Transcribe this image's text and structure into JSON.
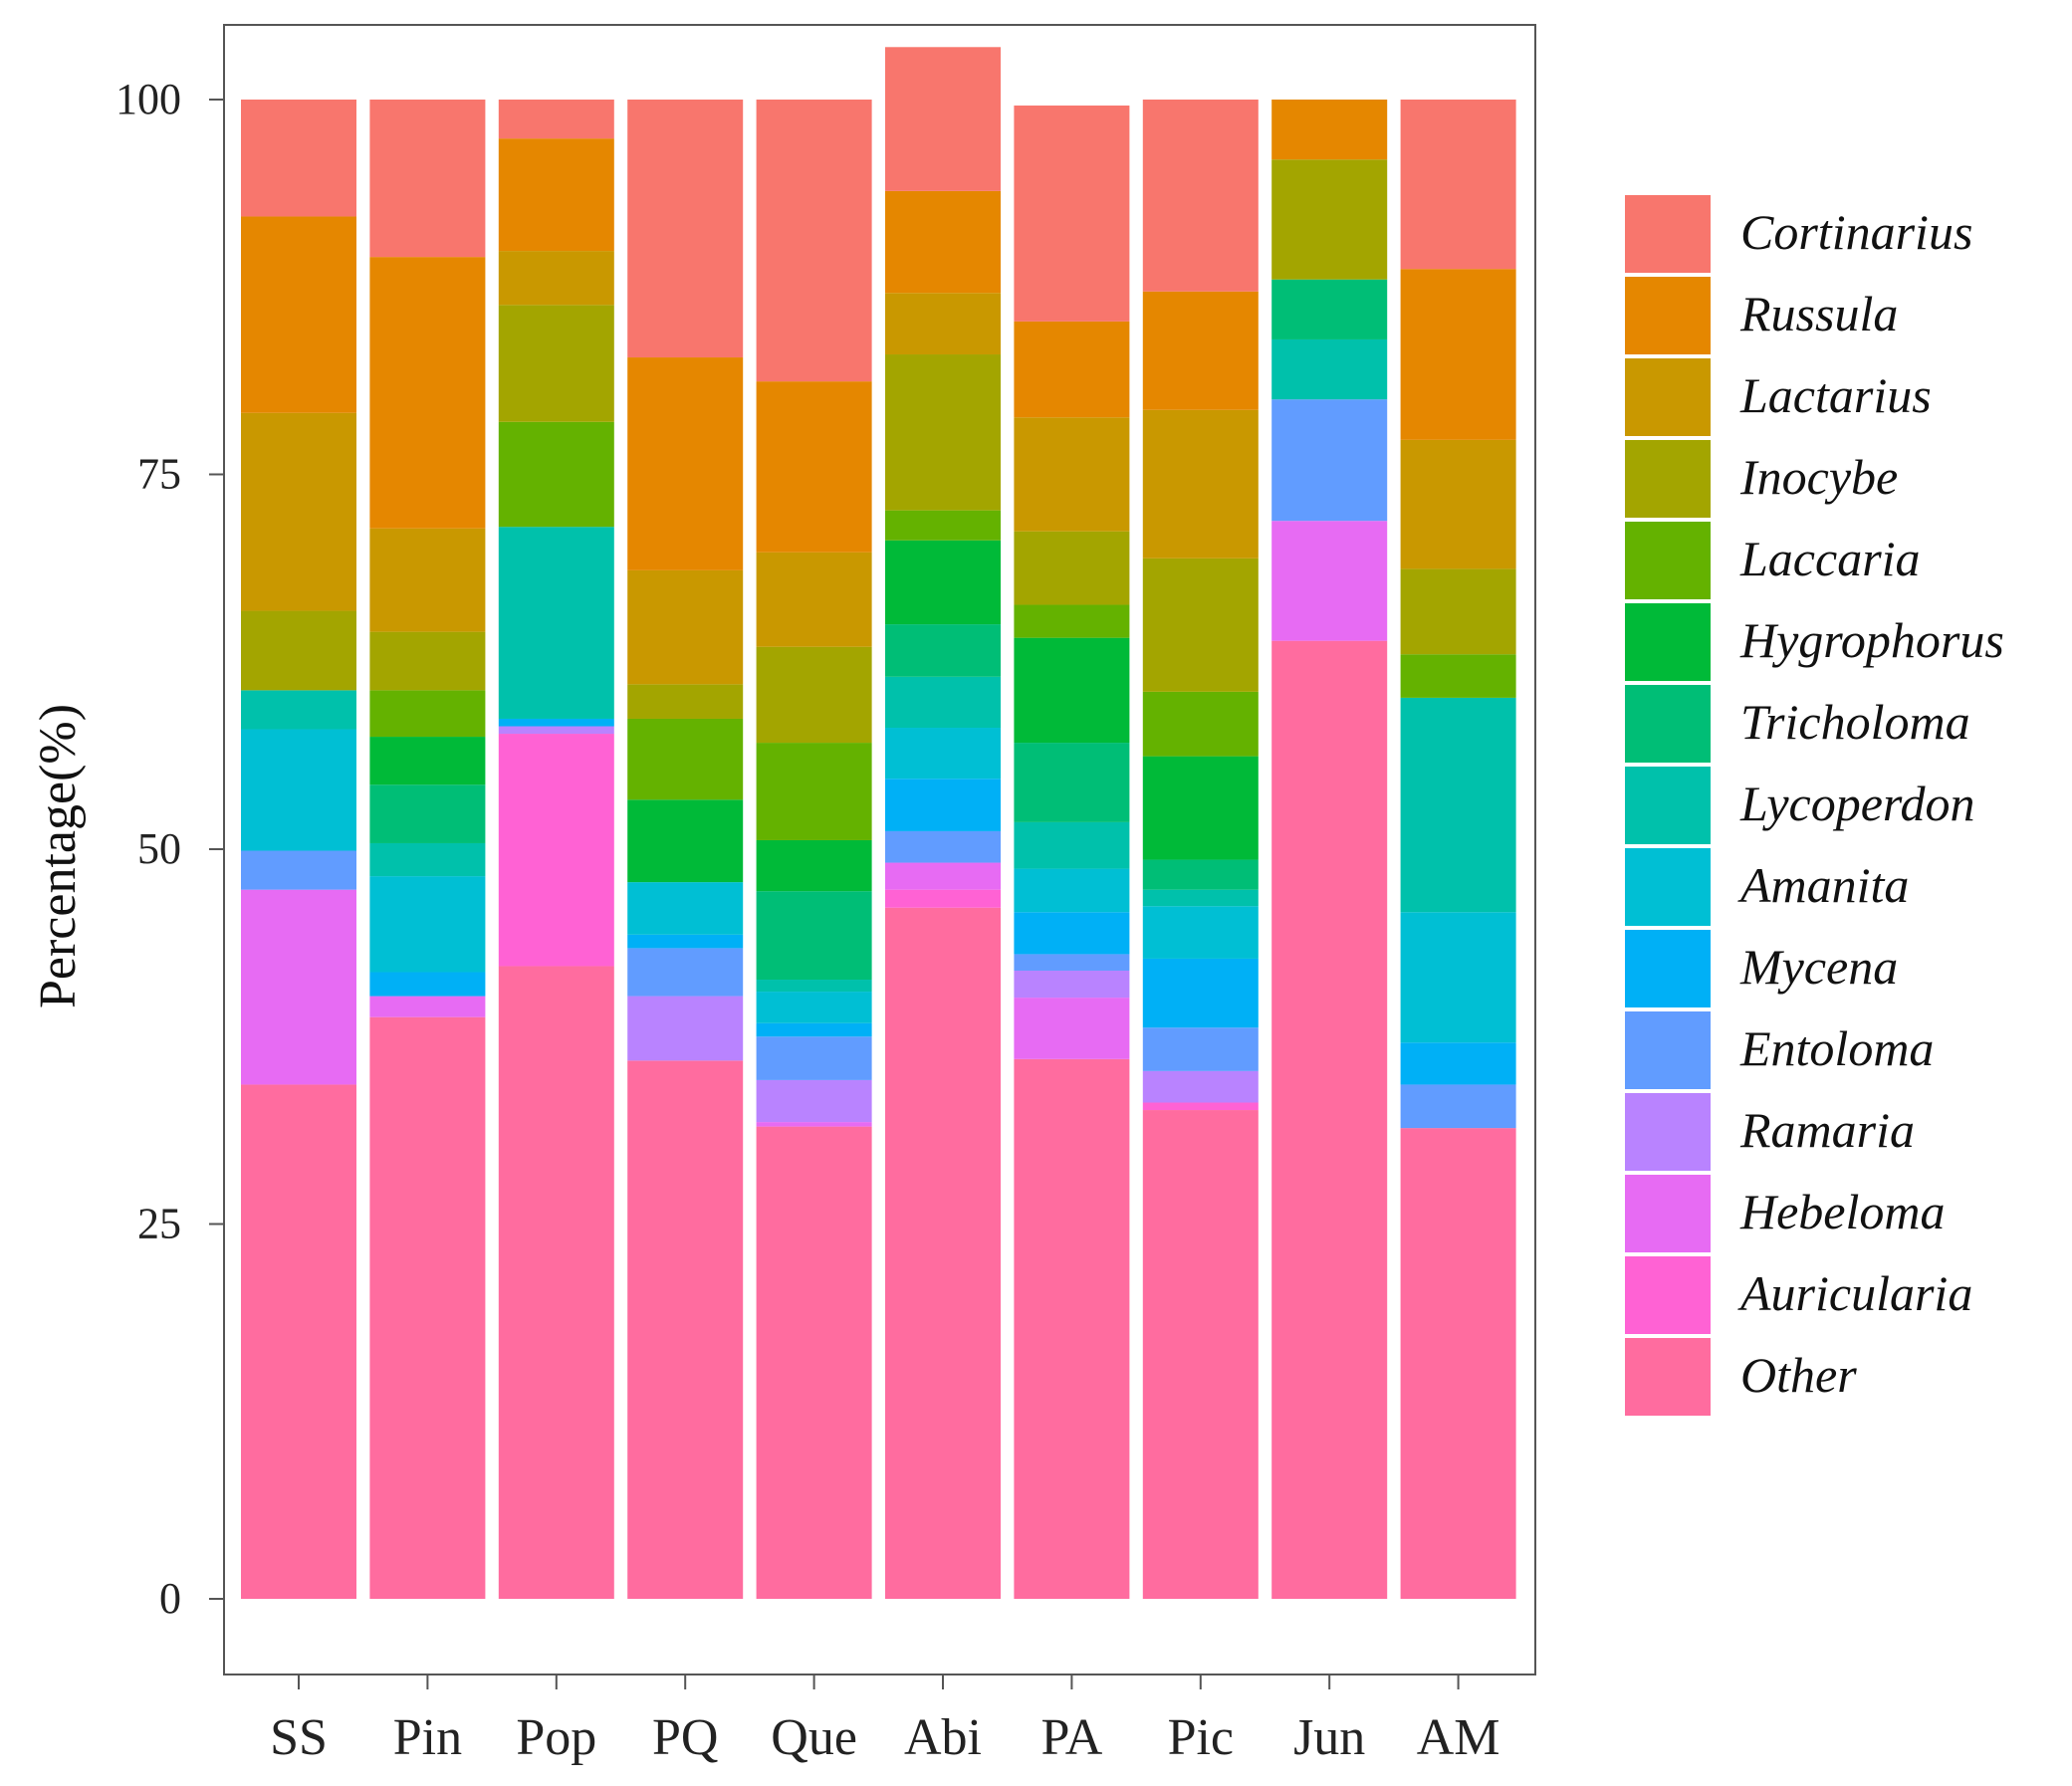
{
  "chart_data": {
    "type": "bar",
    "stacked": true,
    "title": "",
    "xlabel": "",
    "ylabel": "Percentage(%)",
    "ylim": [
      0,
      100
    ],
    "yticks": [
      0,
      25,
      50,
      75,
      100
    ],
    "legend_position": "right",
    "categories": [
      "SS",
      "Pin",
      "Pop",
      "PQ",
      "Que",
      "Abi",
      "PA",
      "Pic",
      "Jun",
      "AM"
    ],
    "series": [
      {
        "name": "Other",
        "color": "#FF6C9F",
        "values": [
          34.3,
          38.8,
          42.2,
          35.9,
          31.5,
          46.1,
          36.0,
          32.6,
          63.9,
          31.4
        ]
      },
      {
        "name": "Auricularia",
        "color": "#FF62D4",
        "values": [
          0,
          0,
          15.5,
          0,
          0,
          1.2,
          0,
          0.5,
          0,
          0
        ]
      },
      {
        "name": "Hebeloma",
        "color": "#E76BF3",
        "values": [
          13.0,
          1.4,
          0,
          0,
          0.3,
          1.8,
          4.1,
          0,
          8.0,
          0
        ]
      },
      {
        "name": "Ramaria",
        "color": "#B983FF",
        "values": [
          0,
          0,
          0.5,
          4.3,
          2.8,
          0,
          1.8,
          2.1,
          0,
          0
        ]
      },
      {
        "name": "Entoloma",
        "color": "#619CFF",
        "values": [
          2.6,
          0,
          0,
          3.2,
          2.9,
          2.1,
          1.1,
          2.9,
          8.1,
          2.9
        ]
      },
      {
        "name": "Mycena",
        "color": "#00B0F6",
        "values": [
          0,
          1.6,
          0.5,
          0.9,
          0.9,
          3.5,
          2.8,
          4.6,
          0,
          2.8
        ]
      },
      {
        "name": "Amanita",
        "color": "#00BFD4",
        "values": [
          8.1,
          6.4,
          0,
          3.5,
          2.1,
          3.4,
          2.9,
          3.5,
          0,
          8.7
        ]
      },
      {
        "name": "Lycoperdon",
        "color": "#00C1AB",
        "values": [
          2.6,
          2.2,
          12.8,
          0,
          0.8,
          3.4,
          3.1,
          1.1,
          4.0,
          14.3
        ]
      },
      {
        "name": "Tricholoma",
        "color": "#00BE76",
        "values": [
          0,
          3.9,
          0,
          0,
          5.9,
          3.5,
          5.3,
          2.0,
          4.0,
          0
        ]
      },
      {
        "name": "Hygrophorus",
        "color": "#00BA38",
        "values": [
          0,
          3.2,
          0,
          5.5,
          3.4,
          5.6,
          7.0,
          6.9,
          0,
          0
        ]
      },
      {
        "name": "Laccaria",
        "color": "#64B200",
        "values": [
          0,
          3.1,
          7.0,
          5.4,
          6.5,
          2.0,
          2.2,
          4.3,
          0,
          2.9
        ]
      },
      {
        "name": "Inocybe",
        "color": "#A3A500",
        "values": [
          5.3,
          3.9,
          7.8,
          2.3,
          6.4,
          10.4,
          4.9,
          8.9,
          8.0,
          5.7
        ]
      },
      {
        "name": "Lactarius",
        "color": "#C99800",
        "values": [
          13.2,
          6.9,
          3.6,
          7.6,
          6.3,
          4.1,
          7.6,
          9.9,
          0,
          8.6
        ]
      },
      {
        "name": "Russula",
        "color": "#E58700",
        "values": [
          13.1,
          18.1,
          7.5,
          14.2,
          11.4,
          6.8,
          6.4,
          7.9,
          4.0,
          11.4
        ]
      },
      {
        "name": "Cortinarius",
        "color": "#F8766D",
        "values": [
          7.8,
          10.5,
          2.6,
          17.2,
          18.8,
          9.6,
          14.4,
          12.8,
          0,
          11.3
        ]
      }
    ]
  }
}
